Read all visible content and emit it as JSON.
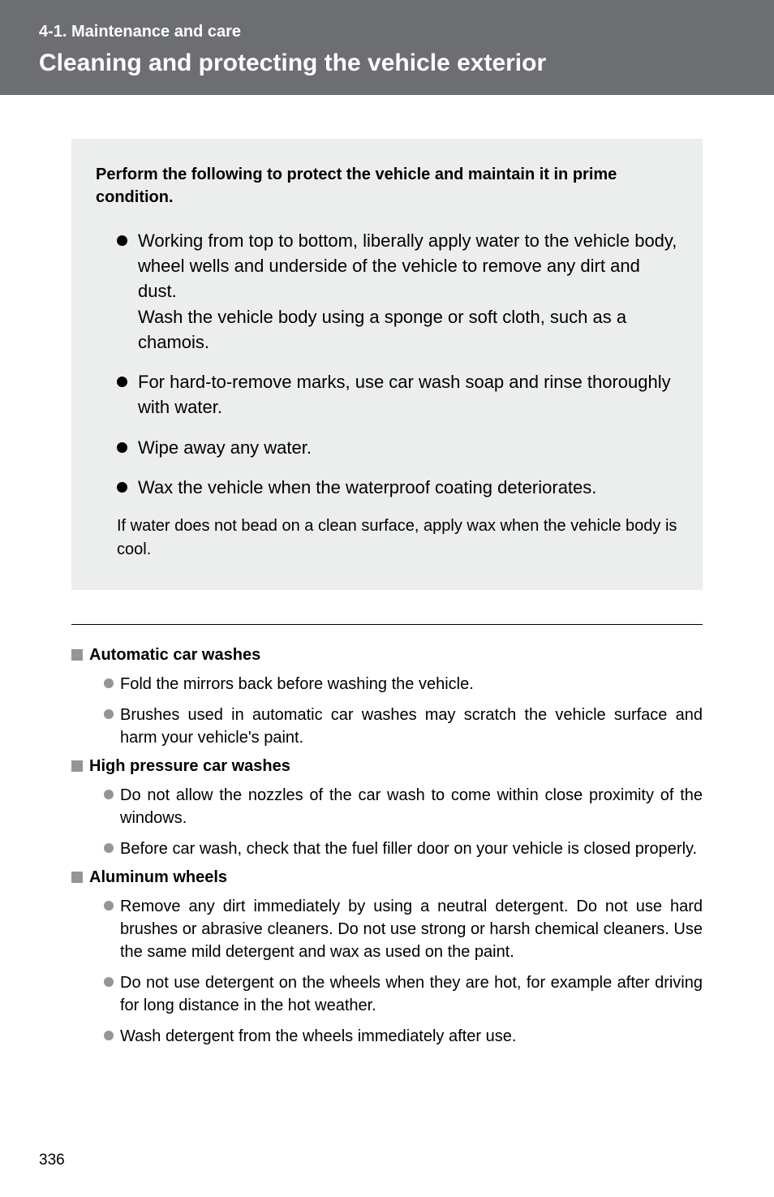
{
  "header": {
    "section_label": "4-1. Maintenance and care",
    "title": "Cleaning and protecting the vehicle exterior"
  },
  "intro": {
    "lead": "Perform the following to protect the vehicle and maintain it in prime condition.",
    "bullets": [
      {
        "main": "Working from top to bottom, liberally apply water to the vehicle body, wheel wells and underside of the vehicle to remove any dirt and dust.",
        "sub": "Wash the vehicle body using a sponge or soft cloth, such as a chamois."
      },
      {
        "main": "For hard-to-remove marks, use car wash soap and rinse thoroughly with water."
      },
      {
        "main": "Wipe away any water."
      },
      {
        "main": "Wax the vehicle when the waterproof coating deteriorates."
      }
    ],
    "trail": "If water does not bead on a clean surface, apply wax when the vehicle body is cool."
  },
  "sections": [
    {
      "heading": "Automatic car washes",
      "items": [
        "Fold the mirrors back before washing the vehicle.",
        "Brushes used in automatic car washes may scratch the vehicle surface and harm your vehicle's paint."
      ]
    },
    {
      "heading": "High pressure car washes",
      "items": [
        "Do not allow the nozzles of the car wash to come within close proximity of the windows.",
        "Before car wash, check that the fuel filler door on your vehicle is closed properly."
      ]
    },
    {
      "heading": "Aluminum wheels",
      "items": [
        "Remove any dirt immediately by using a neutral detergent. Do not use hard brushes or abrasive cleaners. Do not use strong or harsh chemical cleaners. Use the same mild detergent and wax as used on the paint.",
        "Do not use detergent on the wheels when they are hot, for example after driving for long distance in the hot weather.",
        "Wash detergent from the wheels immediately after use."
      ]
    }
  ],
  "page_number": "336",
  "colors": {
    "header_bg": "#6d6e72",
    "intro_bg": "#eceded",
    "square_marker": "#939598",
    "small_bullet": "#939598"
  }
}
